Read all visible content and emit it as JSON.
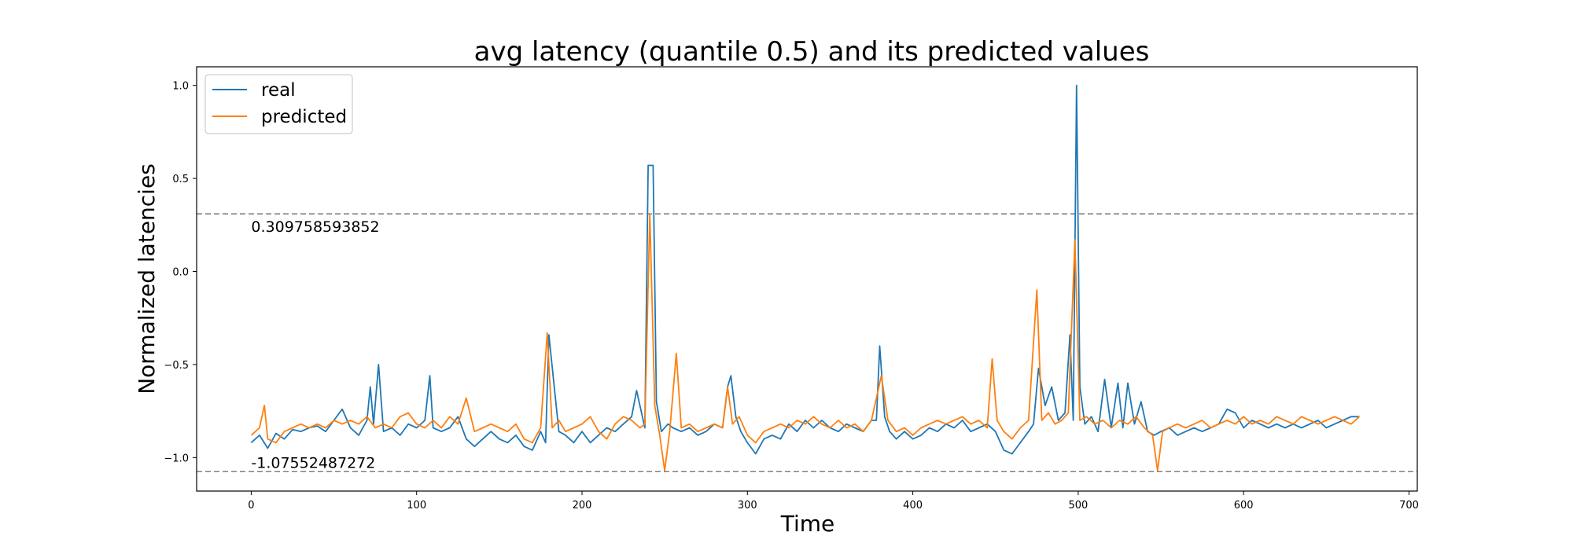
{
  "chart_data": {
    "type": "line",
    "title": "avg latency (quantile 0.5) and its predicted values",
    "xlabel": "Time",
    "ylabel": "Normalized latencies",
    "xlim": [
      -33,
      705
    ],
    "ylim": [
      -1.18,
      1.1
    ],
    "xticks": [
      0,
      100,
      200,
      300,
      400,
      500,
      600,
      700
    ],
    "yticks": [
      -1.0,
      -0.5,
      0.0,
      0.5,
      1.0
    ],
    "ytick_labels": [
      "−1.0",
      "−0.5",
      "0.0",
      "0.5",
      "1.0"
    ],
    "grid": false,
    "legend_position": "top-left",
    "thresholds": [
      {
        "value": 0.309758593852,
        "label": "0.309758593852",
        "color": "#808080"
      },
      {
        "value": -1.07552487272,
        "label": "-1.07552487272",
        "color": "#808080"
      }
    ],
    "series": [
      {
        "name": "real",
        "color": "#1f77b4",
        "points": [
          [
            0,
            -0.92
          ],
          [
            5,
            -0.88
          ],
          [
            10,
            -0.95
          ],
          [
            15,
            -0.87
          ],
          [
            20,
            -0.9
          ],
          [
            25,
            -0.85
          ],
          [
            30,
            -0.86
          ],
          [
            35,
            -0.84
          ],
          [
            40,
            -0.83
          ],
          [
            45,
            -0.86
          ],
          [
            50,
            -0.8
          ],
          [
            55,
            -0.74
          ],
          [
            60,
            -0.84
          ],
          [
            65,
            -0.88
          ],
          [
            70,
            -0.8
          ],
          [
            72,
            -0.62
          ],
          [
            74,
            -0.82
          ],
          [
            77,
            -0.5
          ],
          [
            80,
            -0.86
          ],
          [
            85,
            -0.84
          ],
          [
            90,
            -0.88
          ],
          [
            95,
            -0.82
          ],
          [
            100,
            -0.84
          ],
          [
            105,
            -0.8
          ],
          [
            108,
            -0.56
          ],
          [
            110,
            -0.84
          ],
          [
            115,
            -0.86
          ],
          [
            120,
            -0.84
          ],
          [
            125,
            -0.78
          ],
          [
            130,
            -0.9
          ],
          [
            135,
            -0.94
          ],
          [
            140,
            -0.9
          ],
          [
            145,
            -0.86
          ],
          [
            150,
            -0.9
          ],
          [
            155,
            -0.92
          ],
          [
            160,
            -0.88
          ],
          [
            165,
            -0.94
          ],
          [
            170,
            -0.96
          ],
          [
            175,
            -0.86
          ],
          [
            178,
            -0.92
          ],
          [
            180,
            -0.34
          ],
          [
            183,
            -0.6
          ],
          [
            186,
            -0.86
          ],
          [
            190,
            -0.88
          ],
          [
            195,
            -0.92
          ],
          [
            200,
            -0.86
          ],
          [
            205,
            -0.92
          ],
          [
            210,
            -0.88
          ],
          [
            215,
            -0.84
          ],
          [
            220,
            -0.86
          ],
          [
            225,
            -0.82
          ],
          [
            230,
            -0.78
          ],
          [
            233,
            -0.64
          ],
          [
            236,
            -0.76
          ],
          [
            238,
            -0.84
          ],
          [
            240,
            0.57
          ],
          [
            243,
            0.57
          ],
          [
            245,
            -0.7
          ],
          [
            248,
            -0.86
          ],
          [
            252,
            -0.82
          ],
          [
            255,
            -0.84
          ],
          [
            260,
            -0.86
          ],
          [
            265,
            -0.84
          ],
          [
            270,
            -0.88
          ],
          [
            275,
            -0.86
          ],
          [
            280,
            -0.82
          ],
          [
            285,
            -0.84
          ],
          [
            288,
            -0.62
          ],
          [
            290,
            -0.56
          ],
          [
            293,
            -0.78
          ],
          [
            296,
            -0.86
          ],
          [
            300,
            -0.92
          ],
          [
            305,
            -0.98
          ],
          [
            310,
            -0.9
          ],
          [
            315,
            -0.88
          ],
          [
            320,
            -0.9
          ],
          [
            325,
            -0.82
          ],
          [
            330,
            -0.86
          ],
          [
            335,
            -0.8
          ],
          [
            340,
            -0.84
          ],
          [
            345,
            -0.8
          ],
          [
            350,
            -0.84
          ],
          [
            355,
            -0.86
          ],
          [
            360,
            -0.82
          ],
          [
            365,
            -0.84
          ],
          [
            370,
            -0.86
          ],
          [
            375,
            -0.8
          ],
          [
            378,
            -0.8
          ],
          [
            380,
            -0.4
          ],
          [
            383,
            -0.78
          ],
          [
            386,
            -0.86
          ],
          [
            390,
            -0.9
          ],
          [
            395,
            -0.86
          ],
          [
            400,
            -0.9
          ],
          [
            405,
            -0.88
          ],
          [
            410,
            -0.84
          ],
          [
            415,
            -0.86
          ],
          [
            420,
            -0.82
          ],
          [
            425,
            -0.84
          ],
          [
            430,
            -0.8
          ],
          [
            435,
            -0.86
          ],
          [
            440,
            -0.84
          ],
          [
            445,
            -0.82
          ],
          [
            450,
            -0.86
          ],
          [
            455,
            -0.96
          ],
          [
            460,
            -0.98
          ],
          [
            465,
            -0.92
          ],
          [
            470,
            -0.86
          ],
          [
            473,
            -0.82
          ],
          [
            476,
            -0.52
          ],
          [
            480,
            -0.72
          ],
          [
            484,
            -0.62
          ],
          [
            488,
            -0.8
          ],
          [
            492,
            -0.76
          ],
          [
            495,
            -0.34
          ],
          [
            497,
            -0.8
          ],
          [
            499,
            1.0
          ],
          [
            501,
            -0.62
          ],
          [
            504,
            -0.82
          ],
          [
            508,
            -0.78
          ],
          [
            512,
            -0.86
          ],
          [
            516,
            -0.58
          ],
          [
            520,
            -0.84
          ],
          [
            524,
            -0.6
          ],
          [
            527,
            -0.84
          ],
          [
            530,
            -0.6
          ],
          [
            534,
            -0.82
          ],
          [
            538,
            -0.7
          ],
          [
            542,
            -0.86
          ],
          [
            546,
            -0.88
          ],
          [
            550,
            -0.86
          ],
          [
            555,
            -0.84
          ],
          [
            560,
            -0.88
          ],
          [
            565,
            -0.86
          ],
          [
            570,
            -0.84
          ],
          [
            575,
            -0.86
          ],
          [
            580,
            -0.84
          ],
          [
            585,
            -0.82
          ],
          [
            590,
            -0.74
          ],
          [
            595,
            -0.76
          ],
          [
            600,
            -0.84
          ],
          [
            605,
            -0.8
          ],
          [
            610,
            -0.82
          ],
          [
            615,
            -0.84
          ],
          [
            620,
            -0.82
          ],
          [
            625,
            -0.84
          ],
          [
            630,
            -0.82
          ],
          [
            635,
            -0.84
          ],
          [
            640,
            -0.82
          ],
          [
            645,
            -0.8
          ],
          [
            650,
            -0.84
          ],
          [
            655,
            -0.82
          ],
          [
            660,
            -0.8
          ],
          [
            665,
            -0.78
          ],
          [
            670,
            -0.78
          ]
        ]
      },
      {
        "name": "predicted",
        "color": "#ff7f0e",
        "points": [
          [
            0,
            -0.88
          ],
          [
            5,
            -0.84
          ],
          [
            8,
            -0.72
          ],
          [
            10,
            -0.9
          ],
          [
            15,
            -0.92
          ],
          [
            20,
            -0.86
          ],
          [
            25,
            -0.84
          ],
          [
            30,
            -0.82
          ],
          [
            35,
            -0.84
          ],
          [
            40,
            -0.82
          ],
          [
            45,
            -0.84
          ],
          [
            50,
            -0.8
          ],
          [
            55,
            -0.82
          ],
          [
            60,
            -0.8
          ],
          [
            65,
            -0.82
          ],
          [
            70,
            -0.78
          ],
          [
            75,
            -0.84
          ],
          [
            80,
            -0.82
          ],
          [
            85,
            -0.84
          ],
          [
            90,
            -0.78
          ],
          [
            95,
            -0.76
          ],
          [
            100,
            -0.82
          ],
          [
            105,
            -0.84
          ],
          [
            110,
            -0.8
          ],
          [
            115,
            -0.84
          ],
          [
            120,
            -0.78
          ],
          [
            125,
            -0.82
          ],
          [
            130,
            -0.68
          ],
          [
            135,
            -0.86
          ],
          [
            140,
            -0.84
          ],
          [
            145,
            -0.82
          ],
          [
            150,
            -0.84
          ],
          [
            155,
            -0.86
          ],
          [
            160,
            -0.82
          ],
          [
            165,
            -0.9
          ],
          [
            170,
            -0.92
          ],
          [
            175,
            -0.84
          ],
          [
            179,
            -0.33
          ],
          [
            182,
            -0.84
          ],
          [
            186,
            -0.8
          ],
          [
            190,
            -0.86
          ],
          [
            195,
            -0.84
          ],
          [
            200,
            -0.82
          ],
          [
            205,
            -0.78
          ],
          [
            210,
            -0.86
          ],
          [
            215,
            -0.9
          ],
          [
            220,
            -0.82
          ],
          [
            225,
            -0.78
          ],
          [
            230,
            -0.8
          ],
          [
            235,
            -0.84
          ],
          [
            238,
            -0.82
          ],
          [
            241,
            0.31
          ],
          [
            244,
            -0.72
          ],
          [
            247,
            -0.88
          ],
          [
            250,
            -1.07
          ],
          [
            253,
            -0.86
          ],
          [
            257,
            -0.44
          ],
          [
            260,
            -0.84
          ],
          [
            265,
            -0.82
          ],
          [
            270,
            -0.86
          ],
          [
            275,
            -0.84
          ],
          [
            280,
            -0.82
          ],
          [
            285,
            -0.84
          ],
          [
            288,
            -0.62
          ],
          [
            291,
            -0.82
          ],
          [
            295,
            -0.78
          ],
          [
            300,
            -0.88
          ],
          [
            305,
            -0.92
          ],
          [
            310,
            -0.86
          ],
          [
            315,
            -0.84
          ],
          [
            320,
            -0.82
          ],
          [
            325,
            -0.84
          ],
          [
            330,
            -0.8
          ],
          [
            335,
            -0.82
          ],
          [
            340,
            -0.78
          ],
          [
            345,
            -0.82
          ],
          [
            350,
            -0.84
          ],
          [
            355,
            -0.8
          ],
          [
            360,
            -0.84
          ],
          [
            365,
            -0.82
          ],
          [
            370,
            -0.86
          ],
          [
            375,
            -0.8
          ],
          [
            381,
            -0.56
          ],
          [
            385,
            -0.8
          ],
          [
            390,
            -0.86
          ],
          [
            395,
            -0.84
          ],
          [
            400,
            -0.88
          ],
          [
            405,
            -0.84
          ],
          [
            410,
            -0.82
          ],
          [
            415,
            -0.8
          ],
          [
            420,
            -0.82
          ],
          [
            425,
            -0.8
          ],
          [
            430,
            -0.78
          ],
          [
            435,
            -0.82
          ],
          [
            440,
            -0.8
          ],
          [
            445,
            -0.84
          ],
          [
            448,
            -0.47
          ],
          [
            451,
            -0.8
          ],
          [
            455,
            -0.86
          ],
          [
            460,
            -0.9
          ],
          [
            465,
            -0.84
          ],
          [
            470,
            -0.8
          ],
          [
            475,
            -0.1
          ],
          [
            478,
            -0.8
          ],
          [
            482,
            -0.76
          ],
          [
            486,
            -0.82
          ],
          [
            490,
            -0.8
          ],
          [
            494,
            -0.76
          ],
          [
            498,
            0.17
          ],
          [
            501,
            -0.8
          ],
          [
            505,
            -0.78
          ],
          [
            510,
            -0.82
          ],
          [
            515,
            -0.8
          ],
          [
            520,
            -0.84
          ],
          [
            525,
            -0.8
          ],
          [
            530,
            -0.82
          ],
          [
            535,
            -0.78
          ],
          [
            540,
            -0.84
          ],
          [
            545,
            -0.88
          ],
          [
            548,
            -1.07
          ],
          [
            551,
            -0.86
          ],
          [
            555,
            -0.84
          ],
          [
            560,
            -0.82
          ],
          [
            565,
            -0.84
          ],
          [
            570,
            -0.82
          ],
          [
            575,
            -0.8
          ],
          [
            580,
            -0.84
          ],
          [
            585,
            -0.82
          ],
          [
            590,
            -0.8
          ],
          [
            595,
            -0.82
          ],
          [
            600,
            -0.78
          ],
          [
            605,
            -0.82
          ],
          [
            610,
            -0.8
          ],
          [
            615,
            -0.82
          ],
          [
            620,
            -0.78
          ],
          [
            625,
            -0.8
          ],
          [
            630,
            -0.82
          ],
          [
            635,
            -0.78
          ],
          [
            640,
            -0.8
          ],
          [
            645,
            -0.82
          ],
          [
            650,
            -0.8
          ],
          [
            655,
            -0.78
          ],
          [
            660,
            -0.8
          ],
          [
            665,
            -0.82
          ],
          [
            670,
            -0.78
          ]
        ]
      }
    ]
  }
}
